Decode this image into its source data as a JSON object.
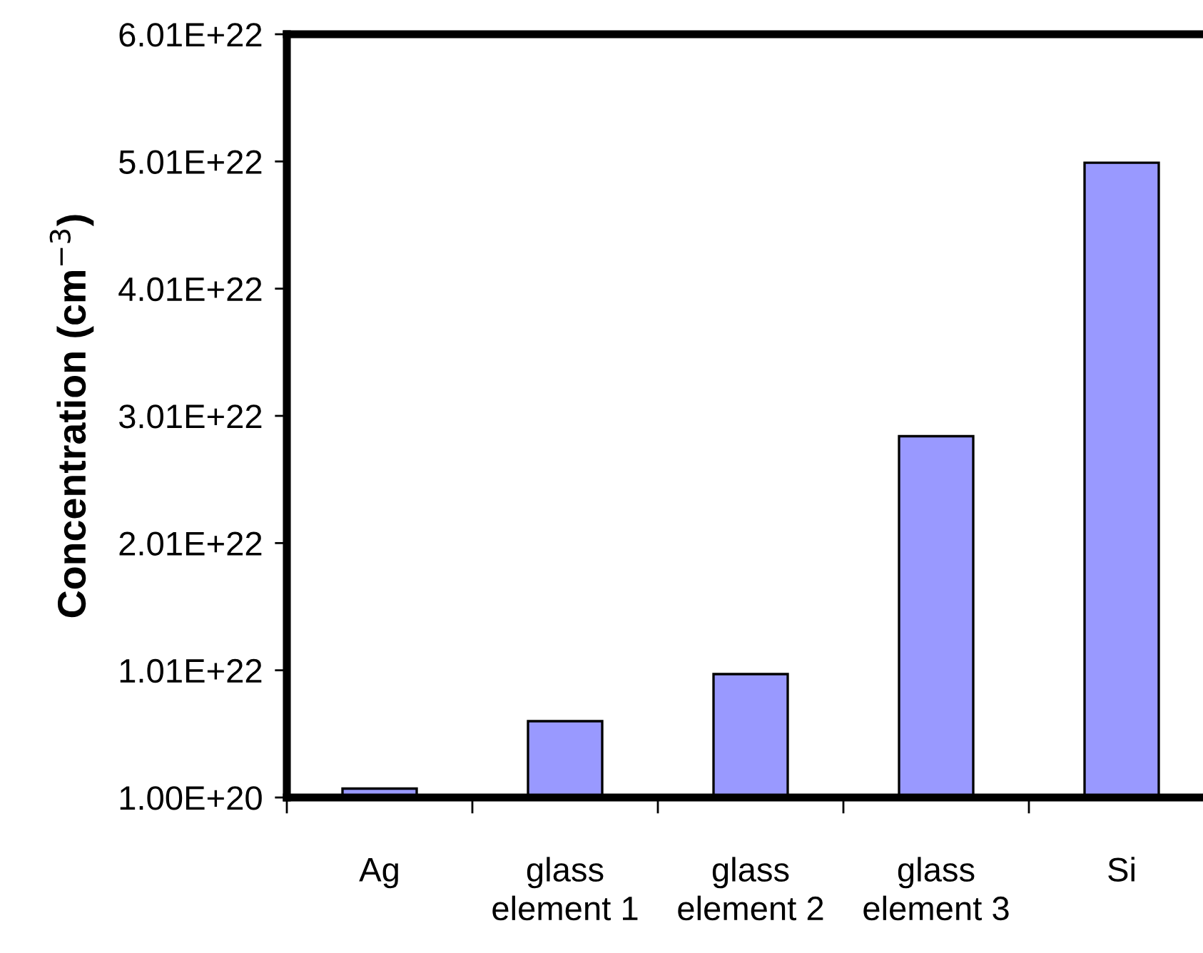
{
  "chart_data": {
    "type": "bar",
    "ylabel": "Concentration (cm$^{−3}$)",
    "categories": [
      "Ag",
      "glass\nelement 1",
      "glass\nelement 2",
      "glass\nelement 3",
      "Si"
    ],
    "values": [
      8e+20,
      6.1e+21,
      9.8e+21,
      2.85e+22,
      5e+22
    ],
    "color": "#9999ff",
    "ylim": [
      1e+20,
      6.01e+22
    ],
    "yticks": [
      {
        "value": 1e+20,
        "label": "1.00E+20"
      },
      {
        "value": 1.01e+22,
        "label": "1.01E+22"
      },
      {
        "value": 2.01e+22,
        "label": "2.01E+22"
      },
      {
        "value": 3.01e+22,
        "label": "3.01E+22"
      },
      {
        "value": 4.01e+22,
        "label": "4.01E+22"
      },
      {
        "value": 5.01e+22,
        "label": "5.01E+22"
      },
      {
        "value": 6.01e+22,
        "label": "6.01E+22"
      }
    ],
    "grid": false
  }
}
